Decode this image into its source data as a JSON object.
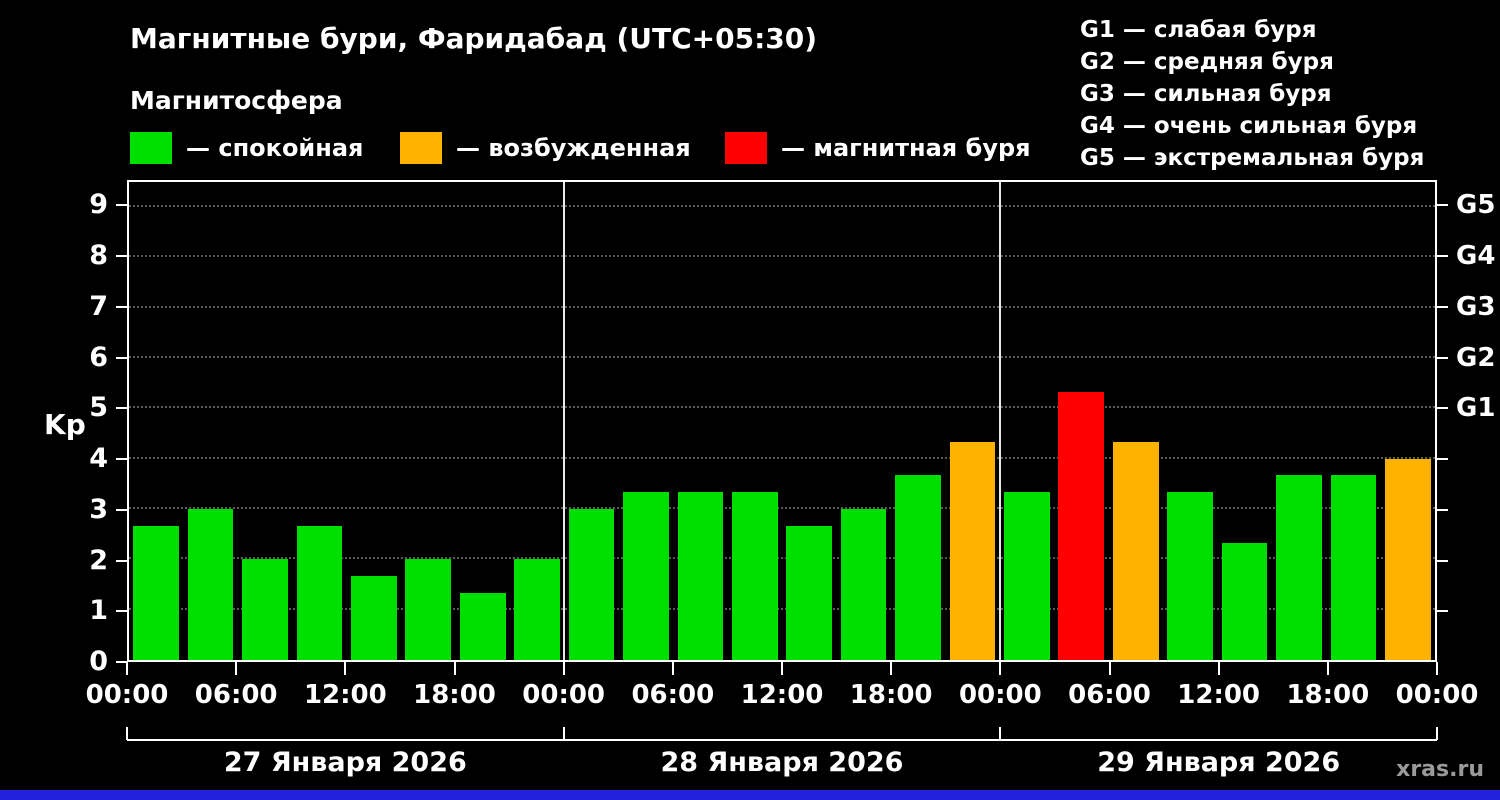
{
  "title": "Магнитные бури, Фаридабад (UTC+05:30)",
  "subtitle": "Магнитосфера",
  "legend": {
    "items": [
      {
        "label": "— спокойная",
        "status": "quiet"
      },
      {
        "label": "— возбужденная",
        "status": "excited"
      },
      {
        "label": "— магнитная буря",
        "status": "storm"
      }
    ]
  },
  "storm_scale": {
    "items": [
      {
        "label": "G1 — слабая буря"
      },
      {
        "label": "G2 — средняя буря"
      },
      {
        "label": "G3 — сильная буря"
      },
      {
        "label": "G4 — очень сильная буря"
      },
      {
        "label": "G5 — экстремальная буря"
      }
    ]
  },
  "watermark": "xras.ru",
  "colors": {
    "quiet": "#00e000",
    "excited": "#ffb300",
    "storm": "#ff0000",
    "background": "#000000",
    "text": "#ffffff",
    "gridline": "#5a5a5a",
    "footer_bar": "#2222dd"
  },
  "chart_data": {
    "type": "bar",
    "title": "Магнитные бури, Фаридабад (UTC+05:30)",
    "ylabel": "Kp",
    "ylim": [
      0,
      9.5
    ],
    "yticks": [
      0,
      1,
      2,
      3,
      4,
      5,
      6,
      7,
      8,
      9
    ],
    "right_axis_labels": [
      {
        "label": "G1",
        "kp": 5
      },
      {
        "label": "G2",
        "kp": 6
      },
      {
        "label": "G3",
        "kp": 7
      },
      {
        "label": "G4",
        "kp": 8
      },
      {
        "label": "G5",
        "kp": 9
      }
    ],
    "x_tick_labels": [
      "00:00",
      "06:00",
      "12:00",
      "18:00",
      "00:00",
      "06:00",
      "12:00",
      "18:00",
      "00:00",
      "06:00",
      "12:00",
      "18:00",
      "00:00"
    ],
    "day_labels": [
      "27 Января 2026",
      "28 Января 2026",
      "29 Января 2026"
    ],
    "bar_interval_hours": 3,
    "values": [
      2.67,
      3,
      2,
      2.67,
      1.67,
      2,
      1.33,
      2,
      3,
      3.33,
      3.33,
      3.33,
      2.67,
      3,
      3.67,
      4.33,
      3.33,
      5.33,
      4.33,
      3.33,
      2.33,
      3.67,
      3.67,
      4
    ],
    "statuses": [
      "quiet",
      "quiet",
      "quiet",
      "quiet",
      "quiet",
      "quiet",
      "quiet",
      "quiet",
      "quiet",
      "quiet",
      "quiet",
      "quiet",
      "quiet",
      "quiet",
      "quiet",
      "excited",
      "quiet",
      "storm",
      "excited",
      "quiet",
      "quiet",
      "quiet",
      "quiet",
      "excited"
    ],
    "grid": true,
    "legend_position": "top"
  }
}
